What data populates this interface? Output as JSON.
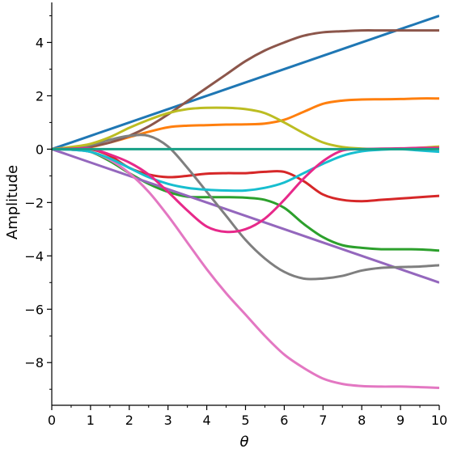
{
  "chart_data": {
    "type": "line",
    "title": "",
    "xlabel": "θ",
    "ylabel": "Amplitude",
    "xlim": [
      0,
      10
    ],
    "ylim": [
      -9.6,
      5.5
    ],
    "grid": false,
    "legend": "none",
    "x_ticks": [
      0,
      1,
      2,
      3,
      4,
      5,
      6,
      7,
      8,
      9,
      10
    ],
    "x_tick_labels": [
      "0",
      "1",
      "2",
      "3",
      "4",
      "5",
      "6",
      "7",
      "8",
      "9",
      "10"
    ],
    "y_ticks": [
      -8,
      -6,
      -4,
      -2,
      0,
      2,
      4
    ],
    "y_tick_labels": [
      "−8",
      "−6",
      "−4",
      "−2",
      "0",
      "2",
      "4"
    ],
    "x": [
      0,
      0.5,
      1,
      1.5,
      2,
      2.5,
      3,
      3.5,
      4,
      4.5,
      5,
      5.5,
      6,
      6.5,
      7,
      7.5,
      8,
      8.5,
      9,
      9.5,
      10
    ],
    "series": [
      {
        "color": "#1f77b4",
        "values": [
          0,
          0.25,
          0.5,
          0.75,
          1.0,
          1.25,
          1.5,
          1.75,
          2.0,
          2.25,
          2.5,
          2.75,
          3.0,
          3.25,
          3.5,
          3.75,
          4.0,
          4.25,
          4.5,
          4.75,
          5.0
        ]
      },
      {
        "color": "#ff7f0e",
        "values": [
          0,
          0.02,
          0.08,
          0.25,
          0.45,
          0.65,
          0.82,
          0.88,
          0.9,
          0.92,
          0.93,
          0.96,
          1.1,
          1.4,
          1.7,
          1.82,
          1.86,
          1.87,
          1.88,
          1.9,
          1.9
        ]
      },
      {
        "color": "#2ca02c",
        "values": [
          0,
          -0.02,
          -0.1,
          -0.45,
          -0.9,
          -1.3,
          -1.6,
          -1.78,
          -1.8,
          -1.8,
          -1.82,
          -1.9,
          -2.2,
          -2.8,
          -3.3,
          -3.6,
          -3.7,
          -3.75,
          -3.75,
          -3.76,
          -3.8
        ]
      },
      {
        "color": "#d62728",
        "values": [
          0,
          0.02,
          0.0,
          -0.25,
          -0.7,
          -0.95,
          -1.05,
          -1.0,
          -0.92,
          -0.9,
          -0.9,
          -0.85,
          -0.85,
          -1.2,
          -1.7,
          -1.9,
          -1.95,
          -1.9,
          -1.85,
          -1.8,
          -1.75
        ]
      },
      {
        "color": "#9467bd",
        "values": [
          0,
          -0.25,
          -0.5,
          -0.75,
          -1.0,
          -1.25,
          -1.5,
          -1.75,
          -2.0,
          -2.25,
          -2.5,
          -2.75,
          -3.0,
          -3.25,
          -3.5,
          -3.75,
          -4.0,
          -4.25,
          -4.5,
          -4.75,
          -5.0
        ]
      },
      {
        "color": "#8c564b",
        "values": [
          0,
          0.02,
          0.1,
          0.25,
          0.5,
          0.85,
          1.3,
          1.8,
          2.3,
          2.8,
          3.3,
          3.7,
          4.0,
          4.25,
          4.38,
          4.42,
          4.45,
          4.45,
          4.45,
          4.45,
          4.45
        ]
      },
      {
        "color": "#e377c2",
        "values": [
          0,
          -0.02,
          -0.1,
          -0.4,
          -0.9,
          -1.6,
          -2.5,
          -3.5,
          -4.5,
          -5.4,
          -6.2,
          -7.0,
          -7.7,
          -8.2,
          -8.6,
          -8.8,
          -8.88,
          -8.9,
          -8.9,
          -8.92,
          -8.95
        ]
      },
      {
        "color": "#7f7f7f",
        "values": [
          0,
          0.05,
          0.15,
          0.35,
          0.5,
          0.5,
          0.1,
          -0.7,
          -1.6,
          -2.5,
          -3.4,
          -4.1,
          -4.6,
          -4.85,
          -4.85,
          -4.75,
          -4.55,
          -4.45,
          -4.42,
          -4.4,
          -4.35
        ]
      },
      {
        "color": "#bcbd22",
        "values": [
          0,
          0.08,
          0.2,
          0.45,
          0.8,
          1.1,
          1.35,
          1.5,
          1.55,
          1.55,
          1.5,
          1.35,
          1.0,
          0.6,
          0.25,
          0.08,
          0.02,
          0.0,
          0.02,
          0.05,
          0.1
        ]
      },
      {
        "color": "#17becf",
        "values": [
          0,
          -0.02,
          -0.1,
          -0.35,
          -0.7,
          -1.05,
          -1.3,
          -1.45,
          -1.52,
          -1.55,
          -1.55,
          -1.45,
          -1.25,
          -0.9,
          -0.55,
          -0.25,
          -0.08,
          -0.02,
          0.0,
          -0.05,
          -0.1
        ]
      },
      {
        "color": "#e7298a",
        "values": [
          0,
          0.02,
          0.02,
          -0.2,
          -0.5,
          -0.95,
          -1.6,
          -2.3,
          -2.9,
          -3.1,
          -3.0,
          -2.6,
          -1.9,
          -1.1,
          -0.45,
          -0.05,
          0.0,
          0.02,
          0.03,
          0.05,
          0.05
        ]
      },
      {
        "color": "#17a086",
        "values": [
          0,
          0,
          0,
          0,
          0,
          0,
          0,
          0,
          0,
          0,
          0,
          0,
          0,
          0,
          0,
          0,
          0,
          0,
          0,
          0,
          0
        ]
      }
    ]
  }
}
